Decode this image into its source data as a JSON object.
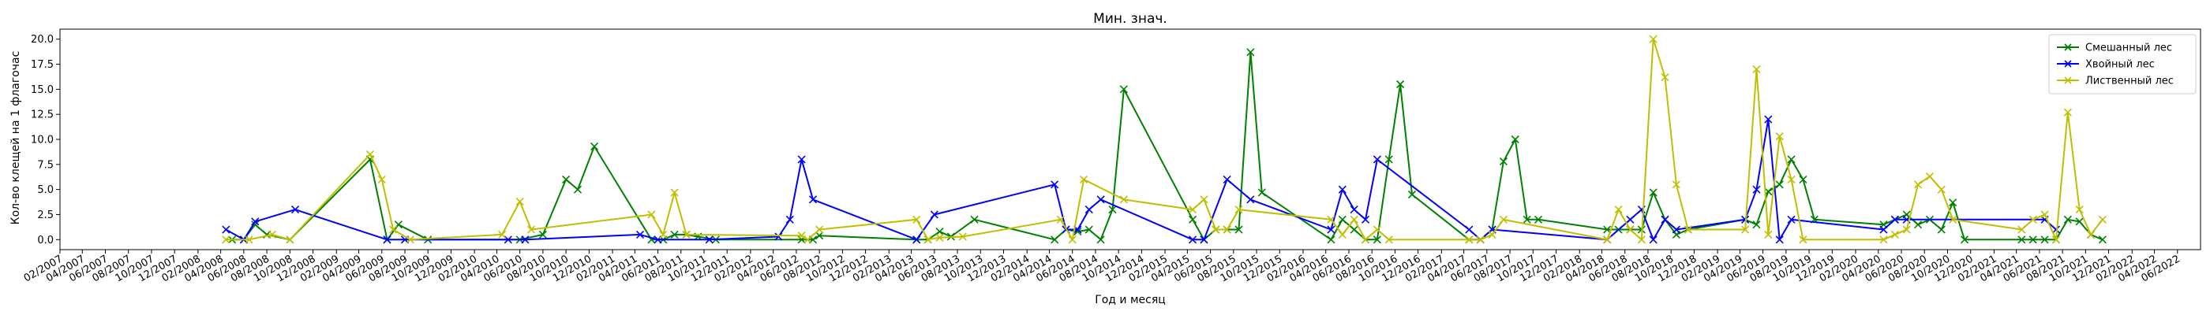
{
  "chart_data": {
    "type": "line",
    "title": "Мин. знач.",
    "xlabel": "Год и месяц",
    "ylabel": "Кол-во клещей на 1 флагочас",
    "xlim": [
      "2007-02",
      "2022-08"
    ],
    "ylim": [
      -1,
      21
    ],
    "y_ticks": [
      0,
      2.5,
      5,
      7.5,
      10,
      12.5,
      15,
      17.5,
      20
    ],
    "y_tick_labels": [
      "0.0",
      "2.5",
      "5.0",
      "7.5",
      "10.0",
      "12.5",
      "15.0",
      "17.5",
      "20.0"
    ],
    "x_ticks": [
      "2007-02",
      "2007-04",
      "2007-06",
      "2007-08",
      "2007-10",
      "2007-12",
      "2008-02",
      "2008-04",
      "2008-06",
      "2008-08",
      "2008-10",
      "2008-12",
      "2009-02",
      "2009-04",
      "2009-06",
      "2009-08",
      "2009-10",
      "2009-12",
      "2010-02",
      "2010-04",
      "2010-06",
      "2010-08",
      "2010-10",
      "2010-12",
      "2011-02",
      "2011-04",
      "2011-06",
      "2011-08",
      "2011-10",
      "2011-12",
      "2012-02",
      "2012-04",
      "2012-06",
      "2012-08",
      "2012-10",
      "2012-12",
      "2013-02",
      "2013-04",
      "2013-06",
      "2013-08",
      "2013-10",
      "2013-12",
      "2014-02",
      "2014-04",
      "2014-06",
      "2014-08",
      "2014-10",
      "2014-12",
      "2015-02",
      "2015-04",
      "2015-06",
      "2015-08",
      "2015-10",
      "2015-12",
      "2016-02",
      "2016-04",
      "2016-06",
      "2016-08",
      "2016-10",
      "2016-12",
      "2017-02",
      "2017-04",
      "2017-06",
      "2017-08",
      "2017-10",
      "2017-12",
      "2018-02",
      "2018-04",
      "2018-06",
      "2018-08",
      "2018-10",
      "2018-12",
      "2019-02",
      "2019-04",
      "2019-06",
      "2019-08",
      "2019-10",
      "2019-12",
      "2020-02",
      "2020-04",
      "2020-06",
      "2020-08",
      "2020-10",
      "2020-12",
      "2021-02",
      "2021-04",
      "2021-06",
      "2021-08",
      "2021-10",
      "2021-12",
      "2022-02",
      "2022-04",
      "2022-06"
    ],
    "x_tick_labels": [
      "02/2007",
      "04/2007",
      "06/2007",
      "08/2007",
      "10/2007",
      "12/2007",
      "02/2008",
      "04/2008",
      "06/2008",
      "08/2008",
      "10/2008",
      "12/2008",
      "02/2009",
      "04/2009",
      "06/2009",
      "08/2009",
      "10/2009",
      "12/2009",
      "02/2010",
      "04/2010",
      "06/2010",
      "08/2010",
      "10/2010",
      "12/2010",
      "02/2011",
      "04/2011",
      "06/2011",
      "08/2011",
      "10/2011",
      "12/2011",
      "02/2012",
      "04/2012",
      "06/2012",
      "08/2012",
      "10/2012",
      "12/2012",
      "02/2013",
      "04/2013",
      "06/2013",
      "08/2013",
      "10/2013",
      "12/2013",
      "02/2014",
      "04/2014",
      "06/2014",
      "08/2014",
      "10/2014",
      "12/2014",
      "02/2015",
      "04/2015",
      "06/2015",
      "08/2015",
      "10/2015",
      "12/2015",
      "02/2016",
      "04/2016",
      "06/2016",
      "08/2016",
      "10/2016",
      "12/2016",
      "02/2017",
      "04/2017",
      "06/2017",
      "08/2017",
      "10/2017",
      "12/2017",
      "02/2018",
      "04/2018",
      "06/2018",
      "08/2018",
      "10/2018",
      "12/2018",
      "02/2019",
      "04/2019",
      "06/2019",
      "08/2019",
      "10/2019",
      "12/2019",
      "02/2020",
      "04/2020",
      "06/2020",
      "08/2020",
      "10/2020",
      "12/2020",
      "02/2021",
      "04/2021",
      "06/2021",
      "08/2021",
      "10/2021",
      "12/2021",
      "02/2022",
      "04/2022",
      "06/2022"
    ],
    "grid": false,
    "legend_position": "top-right",
    "series": [
      {
        "name": "Смешанный лес",
        "color": "#008000",
        "marker": "x",
        "points": [
          [
            "2008-05-01",
            0
          ],
          [
            "2008-06-01",
            0
          ],
          [
            "2008-07-01",
            1.5
          ],
          [
            "2008-08-01",
            0.5
          ],
          [
            "2008-10-01",
            0
          ],
          [
            "2009-05-01",
            8
          ],
          [
            "2009-06-15",
            0
          ],
          [
            "2009-07-15",
            1.5
          ],
          [
            "2009-10-01",
            0
          ],
          [
            "2010-06-01",
            0
          ],
          [
            "2010-08-01",
            0.5
          ],
          [
            "2010-10-01",
            6
          ],
          [
            "2010-11-01",
            5
          ],
          [
            "2010-12-15",
            9.3
          ],
          [
            "2011-05-15",
            0
          ],
          [
            "2011-06-15",
            0
          ],
          [
            "2011-07-15",
            0.5
          ],
          [
            "2011-08-15",
            0.5
          ],
          [
            "2011-09-15",
            0.3
          ],
          [
            "2011-11-01",
            0
          ],
          [
            "2012-06-15",
            0
          ],
          [
            "2012-07-15",
            0
          ],
          [
            "2012-08-01",
            0.4
          ],
          [
            "2013-04-15",
            0
          ],
          [
            "2013-05-15",
            0
          ],
          [
            "2013-06-15",
            0.8
          ],
          [
            "2013-07-15",
            0.3
          ],
          [
            "2013-09-15",
            2
          ],
          [
            "2014-04-15",
            0
          ],
          [
            "2014-05-15",
            1
          ],
          [
            "2014-06-15",
            0.8
          ],
          [
            "2014-07-15",
            1
          ],
          [
            "2014-08-15",
            0
          ],
          [
            "2014-09-15",
            3
          ],
          [
            "2014-10-15",
            15
          ],
          [
            "2015-04-15",
            2
          ],
          [
            "2015-05-15",
            0
          ],
          [
            "2015-06-15",
            1
          ],
          [
            "2015-07-15",
            1
          ],
          [
            "2015-08-15",
            1
          ],
          [
            "2015-09-15",
            18.7
          ],
          [
            "2015-10-15",
            4.7
          ],
          [
            "2016-04-15",
            0
          ],
          [
            "2016-05-15",
            2
          ],
          [
            "2016-06-15",
            1
          ],
          [
            "2016-07-15",
            0
          ],
          [
            "2016-08-15",
            0
          ],
          [
            "2016-09-15",
            8
          ],
          [
            "2016-10-15",
            15.5
          ],
          [
            "2016-11-15",
            4.5
          ],
          [
            "2017-04-15",
            0
          ],
          [
            "2017-05-15",
            0
          ],
          [
            "2017-06-15",
            1
          ],
          [
            "2017-07-15",
            7.8
          ],
          [
            "2017-08-15",
            10
          ],
          [
            "2017-09-15",
            2
          ],
          [
            "2017-10-15",
            2
          ],
          [
            "2018-04-15",
            1
          ],
          [
            "2018-05-15",
            1
          ],
          [
            "2018-06-15",
            1
          ],
          [
            "2018-07-15",
            1
          ],
          [
            "2018-08-15",
            4.7
          ],
          [
            "2018-09-15",
            2
          ],
          [
            "2018-10-15",
            0.5
          ],
          [
            "2018-11-15",
            1
          ],
          [
            "2019-04-15",
            2
          ],
          [
            "2019-05-15",
            1.5
          ],
          [
            "2019-06-15",
            4.8
          ],
          [
            "2019-07-15",
            5.5
          ],
          [
            "2019-08-15",
            8
          ],
          [
            "2019-09-15",
            6
          ],
          [
            "2019-10-15",
            2
          ],
          [
            "2020-04-15",
            1.5
          ],
          [
            "2020-05-15",
            2
          ],
          [
            "2020-06-15",
            2.5
          ],
          [
            "2020-07-15",
            1.5
          ],
          [
            "2020-08-15",
            2
          ],
          [
            "2020-09-15",
            1
          ],
          [
            "2020-10-15",
            3.7
          ],
          [
            "2020-11-15",
            0
          ],
          [
            "2021-04-15",
            0
          ],
          [
            "2021-05-15",
            0
          ],
          [
            "2021-06-15",
            0
          ],
          [
            "2021-07-15",
            0
          ],
          [
            "2021-08-15",
            2
          ],
          [
            "2021-09-15",
            1.8
          ],
          [
            "2021-10-15",
            0.5
          ],
          [
            "2021-11-15",
            0
          ]
        ]
      },
      {
        "name": "Хвойный лес",
        "color": "#0000ff",
        "marker": "x",
        "points": [
          [
            "2008-04-15",
            1
          ],
          [
            "2008-06-01",
            0
          ],
          [
            "2008-07-01",
            1.8
          ],
          [
            "2008-10-15",
            3
          ],
          [
            "2009-06-15",
            0
          ],
          [
            "2009-08-01",
            0
          ],
          [
            "2010-05-01",
            0
          ],
          [
            "2010-06-15",
            0
          ],
          [
            "2011-04-15",
            0.5
          ],
          [
            "2011-06-01",
            0
          ],
          [
            "2011-10-15",
            0
          ],
          [
            "2012-04-15",
            0.3
          ],
          [
            "2012-05-15",
            2
          ],
          [
            "2012-06-15",
            8
          ],
          [
            "2012-07-15",
            4
          ],
          [
            "2013-04-15",
            0
          ],
          [
            "2013-06-01",
            2.5
          ],
          [
            "2014-04-15",
            5.5
          ],
          [
            "2014-05-15",
            1
          ],
          [
            "2014-06-15",
            1
          ],
          [
            "2014-07-15",
            3
          ],
          [
            "2014-08-15",
            4
          ],
          [
            "2015-04-15",
            0
          ],
          [
            "2015-05-15",
            0
          ],
          [
            "2015-07-15",
            6
          ],
          [
            "2015-09-15",
            4
          ],
          [
            "2016-04-15",
            1
          ],
          [
            "2016-05-15",
            5
          ],
          [
            "2016-06-15",
            3
          ],
          [
            "2016-07-15",
            2
          ],
          [
            "2016-08-15",
            8
          ],
          [
            "2017-04-15",
            1
          ],
          [
            "2017-05-15",
            0
          ],
          [
            "2017-06-15",
            1
          ],
          [
            "2018-04-15",
            0
          ],
          [
            "2018-06-15",
            2
          ],
          [
            "2018-07-15",
            3
          ],
          [
            "2018-08-15",
            0
          ],
          [
            "2018-09-15",
            2
          ],
          [
            "2018-10-15",
            1
          ],
          [
            "2019-04-15",
            2
          ],
          [
            "2019-05-15",
            5
          ],
          [
            "2019-06-15",
            12
          ],
          [
            "2019-07-15",
            0
          ],
          [
            "2019-08-15",
            2
          ],
          [
            "2020-04-15",
            1
          ],
          [
            "2020-05-15",
            2
          ],
          [
            "2020-06-15",
            2
          ],
          [
            "2021-06-15",
            2
          ],
          [
            "2021-07-15",
            1
          ]
        ]
      },
      {
        "name": "Лиственный лес",
        "color": "#bfbf00",
        "marker": "x",
        "points": [
          [
            "2008-04-15",
            0
          ],
          [
            "2008-06-15",
            0
          ],
          [
            "2008-08-15",
            0.5
          ],
          [
            "2008-10-01",
            0
          ],
          [
            "2009-05-01",
            8.5
          ],
          [
            "2009-06-01",
            6
          ],
          [
            "2009-07-01",
            1
          ],
          [
            "2009-08-15",
            0
          ],
          [
            "2010-04-15",
            0.5
          ],
          [
            "2010-06-01",
            3.8
          ],
          [
            "2010-07-01",
            1
          ],
          [
            "2011-05-15",
            2.5
          ],
          [
            "2011-06-15",
            0.5
          ],
          [
            "2011-07-15",
            4.7
          ],
          [
            "2011-08-15",
            0.5
          ],
          [
            "2012-06-15",
            0.4
          ],
          [
            "2012-07-01",
            0
          ],
          [
            "2012-08-01",
            1
          ],
          [
            "2013-04-15",
            2
          ],
          [
            "2013-05-15",
            0
          ],
          [
            "2013-06-15",
            0.2
          ],
          [
            "2013-08-15",
            0.3
          ],
          [
            "2014-05-01",
            2
          ],
          [
            "2014-06-01",
            0
          ],
          [
            "2014-07-01",
            6
          ],
          [
            "2014-10-15",
            4
          ],
          [
            "2015-04-15",
            3
          ],
          [
            "2015-05-15",
            4
          ],
          [
            "2015-06-15",
            1
          ],
          [
            "2015-07-15",
            1
          ],
          [
            "2015-08-15",
            3
          ],
          [
            "2016-04-15",
            2
          ],
          [
            "2016-05-15",
            0.5
          ],
          [
            "2016-06-15",
            2
          ],
          [
            "2016-07-15",
            0
          ],
          [
            "2016-08-15",
            1
          ],
          [
            "2016-09-15",
            0
          ],
          [
            "2017-04-15",
            0
          ],
          [
            "2017-05-15",
            0
          ],
          [
            "2017-06-15",
            0.5
          ],
          [
            "2017-07-15",
            2
          ],
          [
            "2018-04-15",
            0
          ],
          [
            "2018-05-15",
            3
          ],
          [
            "2018-06-15",
            1
          ],
          [
            "2018-07-15",
            0
          ],
          [
            "2018-08-15",
            20
          ],
          [
            "2018-09-15",
            16.2
          ],
          [
            "2018-10-15",
            5.5
          ],
          [
            "2018-11-15",
            1
          ],
          [
            "2019-04-15",
            1
          ],
          [
            "2019-05-15",
            17
          ],
          [
            "2019-06-15",
            0.5
          ],
          [
            "2019-07-15",
            10.3
          ],
          [
            "2019-08-15",
            6
          ],
          [
            "2019-09-15",
            0
          ],
          [
            "2020-04-15",
            0
          ],
          [
            "2020-05-15",
            0.5
          ],
          [
            "2020-06-15",
            1
          ],
          [
            "2020-07-15",
            5.5
          ],
          [
            "2020-08-15",
            6.3
          ],
          [
            "2020-09-15",
            5
          ],
          [
            "2020-10-15",
            2
          ],
          [
            "2021-04-15",
            1
          ],
          [
            "2021-05-15",
            2
          ],
          [
            "2021-06-15",
            2.5
          ],
          [
            "2021-07-15",
            0
          ],
          [
            "2021-08-15",
            12.7
          ],
          [
            "2021-09-15",
            3
          ],
          [
            "2021-10-15",
            0.5
          ],
          [
            "2021-11-15",
            2
          ]
        ]
      }
    ]
  }
}
